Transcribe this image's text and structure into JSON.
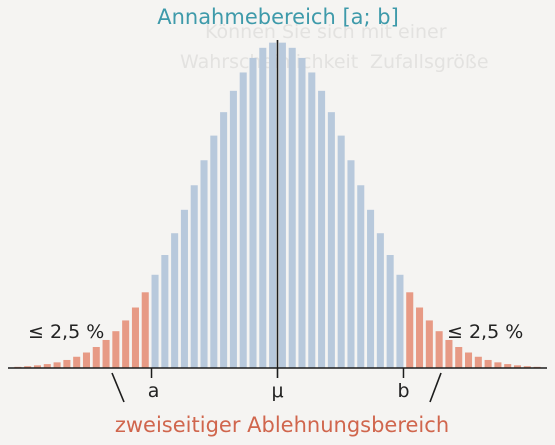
{
  "chart_data": {
    "type": "bar",
    "title": "Annahmebereich [a; b]",
    "bottom_label": "zweiseitiger Ablehnungsbereich",
    "left_tail_label": "≤ 2,5 %",
    "right_tail_label": "≤ 2,5 %",
    "axis_labels": {
      "a": "a",
      "mu": "μ",
      "b": "b"
    },
    "n_bars": 54,
    "mu_index": 26.5,
    "sigma_bars": 7.9,
    "max_height": 1.0,
    "acceptance": {
      "first_index": 14,
      "last_index": 39
    },
    "show_y_axis": false,
    "colors": {
      "acceptance": "#b8c9dc",
      "rejection": "#e79a85",
      "title": "#3e9aaa",
      "bottom_label": "#d0664d",
      "axis": "#1c1c1c",
      "text": "#222222"
    }
  },
  "background_text": {
    "line1": "Können Sie sich mit einer",
    "line2": "Wahrscheinlichkeit",
    "line3": "Zufallsgröße"
  }
}
